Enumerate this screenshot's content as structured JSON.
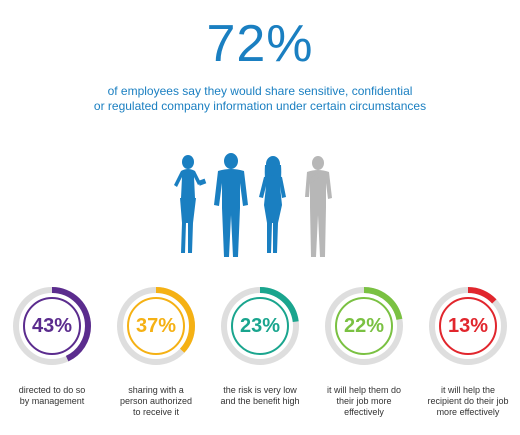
{
  "headline": {
    "value": "72%",
    "color": "#1a7fc1"
  },
  "subtitle": {
    "line1": "of employees say they would share sensitive, confidential",
    "line2": "or regulated company information under certain circumstances"
  },
  "illustration": {
    "name": "people-silhouettes",
    "colors": [
      "#1a7fc1",
      "#1a7fc1",
      "#1a7fc1",
      "#b7b7b7"
    ]
  },
  "stats": [
    {
      "percent": 43,
      "label": "43%",
      "color": "#5b2c8e",
      "caption": [
        "directed to do so",
        "by management"
      ]
    },
    {
      "percent": 37,
      "label": "37%",
      "color": "#f5b114",
      "caption": [
        "sharing with a",
        "person authorized",
        "to receive it"
      ]
    },
    {
      "percent": 23,
      "label": "23%",
      "color": "#1aa58e",
      "caption": [
        "the risk is very low",
        "and the benefit high"
      ]
    },
    {
      "percent": 22,
      "label": "22%",
      "color": "#7ac142",
      "caption": [
        "it will help them do",
        "their job more",
        "effectively"
      ]
    },
    {
      "percent": 13,
      "label": "13%",
      "color": "#e1262d",
      "caption": [
        "it will help the",
        "recipient do their job",
        "more effectively"
      ]
    }
  ],
  "ring_track_color": "#dedede"
}
